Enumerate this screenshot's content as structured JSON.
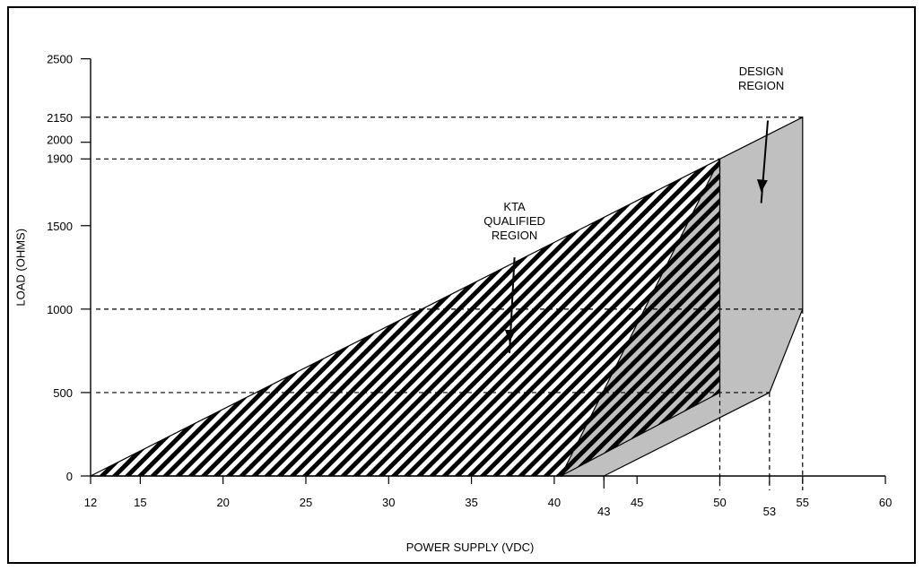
{
  "chart_data": {
    "type": "area",
    "xlabel": "POWER SUPPLY (VDC)",
    "ylabel": "LOAD (OHMS)",
    "xlim": [
      12,
      60
    ],
    "ylim": [
      0,
      2500
    ],
    "x_ticks": [
      {
        "value": 12,
        "label": "12"
      },
      {
        "value": 15,
        "label": "15"
      },
      {
        "value": 20,
        "label": "20"
      },
      {
        "value": 25,
        "label": "25"
      },
      {
        "value": 30,
        "label": "30"
      },
      {
        "value": 35,
        "label": "35"
      },
      {
        "value": 40,
        "label": "40"
      },
      {
        "value": 43,
        "label": "43"
      },
      {
        "value": 45,
        "label": "45"
      },
      {
        "value": 50,
        "label": "50"
      },
      {
        "value": 53,
        "label": "53"
      },
      {
        "value": 55,
        "label": "55"
      },
      {
        "value": 60,
        "label": "60"
      }
    ],
    "y_ticks": [
      {
        "value": 0,
        "label": "0"
      },
      {
        "value": 500,
        "label": "500"
      },
      {
        "value": 1000,
        "label": "1000"
      },
      {
        "value": 1500,
        "label": "1500"
      },
      {
        "value": 1900,
        "label": "1900"
      },
      {
        "value": 2000,
        "label": "2000"
      },
      {
        "value": 2150,
        "label": "2150"
      },
      {
        "value": 2500,
        "label": "2500"
      }
    ],
    "reference_lines": {
      "horizontal": [
        {
          "y": 2150,
          "x_end": 55
        },
        {
          "y": 1900,
          "x_end": 50
        },
        {
          "y": 1000,
          "x_end": 55
        },
        {
          "y": 500,
          "x_end": 53
        }
      ],
      "vertical": [
        {
          "x": 43,
          "y_end": 0
        },
        {
          "x": 50,
          "y_end": 1900
        },
        {
          "x": 53,
          "y_end": 500
        },
        {
          "x": 55,
          "y_end": 1000
        }
      ]
    },
    "regions": [
      {
        "name": "DESIGN REGION",
        "fill": "#c0c0c0",
        "polygon": [
          [
            43,
            0
          ],
          [
            53,
            500
          ],
          [
            55,
            1000
          ],
          [
            55,
            2150
          ],
          [
            50,
            1900
          ],
          [
            40.4,
            0
          ]
        ]
      },
      {
        "name": "KTA QUALIFIED REGION",
        "fill": "hatch",
        "polygon": [
          [
            12,
            0
          ],
          [
            50,
            1900
          ],
          [
            50,
            500
          ],
          [
            40.4,
            0
          ]
        ]
      }
    ],
    "annotations": [
      {
        "lines": [
          "DESIGN",
          "REGION"
        ],
        "text_at": [
          52.5,
          2400
        ],
        "arrow_from": [
          52.9,
          2130
        ],
        "arrow_to": [
          52.5,
          1700
        ]
      },
      {
        "lines": [
          "KTA",
          "QUALIFIED",
          "REGION"
        ],
        "text_at": [
          37.6,
          1590
        ],
        "arrow_from": [
          37.6,
          1310
        ],
        "arrow_to": [
          37.3,
          800
        ]
      }
    ],
    "colors": {
      "design_fill": "#c0c0c0",
      "line": "#000000"
    }
  }
}
